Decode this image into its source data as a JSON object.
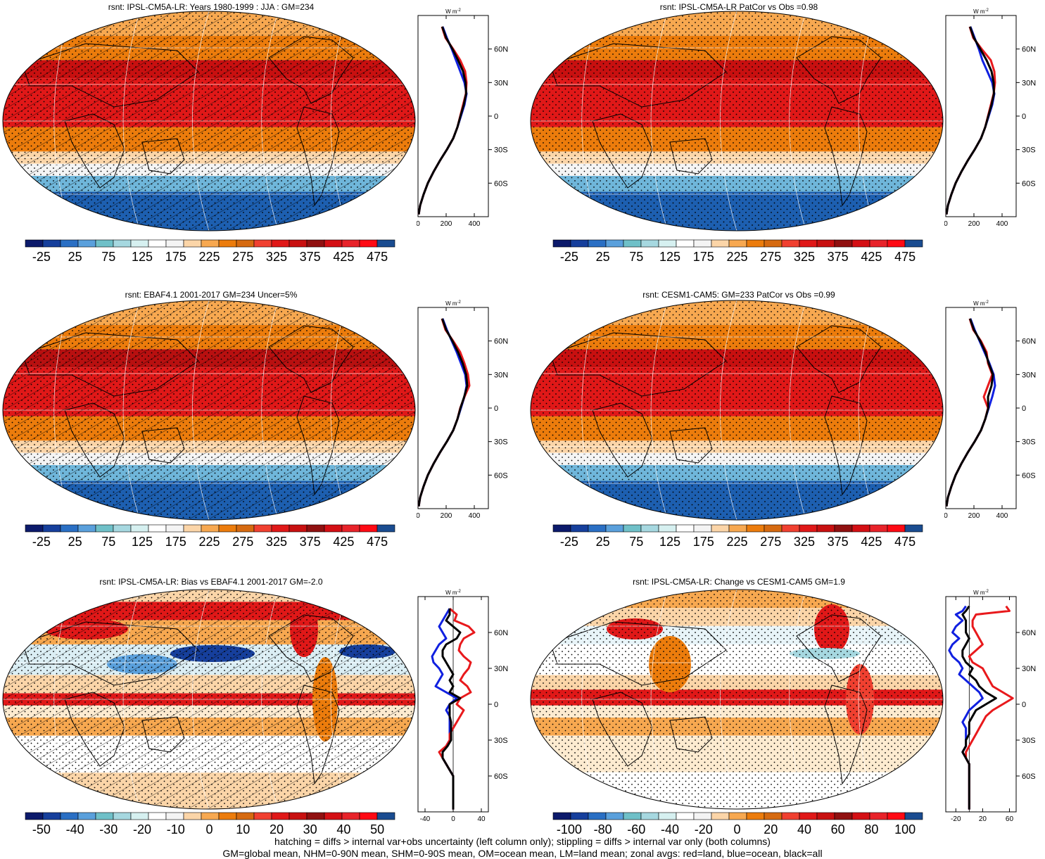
{
  "footer": {
    "line1": "hatching = diffs > internal var+obs uncertainty (left column only); stippling = diffs > internal var only (both columns)",
    "line2": "GM=global mean, NHM=0-90N mean, SHM=0-90S mean, OM=ocean mean, LM=land mean; zonal avgs: red=land, blue=ocean, black=all"
  },
  "colors": {
    "land": "#e8191c",
    "ocean": "#1020e0",
    "all": "#000000"
  },
  "chart_data": [
    {
      "type": "heatmap",
      "title": "rsnt: IPSL-CM5A-LR: Years 1980-1999 : JJA : GM=234",
      "pattern": "hatch+stipple",
      "colorbar_ticks": [
        "-25",
        "25",
        "75",
        "125",
        "175",
        "225",
        "275",
        "325",
        "375",
        "425",
        "475"
      ],
      "colorbar_colors": [
        "#0c1a6b",
        "#163f9c",
        "#2a6fc4",
        "#5aa0dc",
        "#6fc0c8",
        "#a6d8e0",
        "#d6f0f0",
        "#ffffff",
        "#f4f4f4",
        "#fbd5a8",
        "#f7a850",
        "#ec7c0c",
        "#d66a10",
        "#f04030",
        "#e01818",
        "#c81010",
        "#901010",
        "#d40f14",
        "#e8232a",
        "#ff0a14",
        "#1a4c90"
      ],
      "zonal": {
        "axis_unit": "W m",
        "axis_unit_sup": "-2",
        "x_ticks": [
          "0",
          "200",
          "400"
        ],
        "xlim": [
          0,
          500
        ],
        "y_ticks": [
          "60N",
          "30N",
          "0",
          "30S",
          "60S"
        ],
        "ylim": [
          -90,
          90
        ],
        "lat": [
          80,
          70,
          60,
          50,
          40,
          30,
          20,
          10,
          0,
          -10,
          -20,
          -30,
          -40,
          -50,
          -60,
          -70,
          -80,
          -88
        ],
        "land": [
          170,
          195,
          250,
          300,
          335,
          345,
          340,
          320,
          300,
          280,
          250,
          205,
          155,
          110,
          70,
          40,
          15,
          5
        ],
        "ocean": [
          175,
          205,
          240,
          270,
          300,
          330,
          345,
          330,
          305,
          280,
          250,
          205,
          155,
          110,
          70,
          40,
          15,
          5
        ],
        "all": [
          172,
          200,
          245,
          285,
          320,
          338,
          342,
          325,
          302,
          280,
          250,
          205,
          155,
          110,
          70,
          40,
          15,
          5
        ]
      }
    },
    {
      "type": "heatmap",
      "title": "rsnt: IPSL-CM5A-LR PatCor vs Obs =0.98",
      "pattern": "stipple",
      "colorbar_ticks": [
        "-25",
        "25",
        "75",
        "125",
        "175",
        "225",
        "275",
        "325",
        "375",
        "425",
        "475"
      ],
      "colorbar_colors": [
        "#0c1a6b",
        "#163f9c",
        "#2a6fc4",
        "#5aa0dc",
        "#6fc0c8",
        "#a6d8e0",
        "#d6f0f0",
        "#ffffff",
        "#f4f4f4",
        "#fbd5a8",
        "#f7a850",
        "#ec7c0c",
        "#d66a10",
        "#f04030",
        "#e01818",
        "#c81010",
        "#901010",
        "#d40f14",
        "#e8232a",
        "#ff0a14",
        "#1a4c90"
      ],
      "zonal": {
        "axis_unit": "W m",
        "axis_unit_sup": "-2",
        "x_ticks": [
          "0",
          "200",
          "400"
        ],
        "xlim": [
          0,
          500
        ],
        "y_ticks": [
          "60N",
          "30N",
          "0",
          "30S",
          "60S"
        ],
        "ylim": [
          -90,
          90
        ],
        "lat": [
          80,
          70,
          60,
          50,
          40,
          30,
          20,
          10,
          0,
          -10,
          -20,
          -30,
          -40,
          -50,
          -60,
          -70,
          -80,
          -88
        ],
        "land": [
          170,
          195,
          255,
          320,
          345,
          350,
          340,
          320,
          300,
          280,
          250,
          205,
          155,
          110,
          70,
          40,
          15,
          5
        ],
        "ocean": [
          175,
          205,
          235,
          260,
          295,
          330,
          345,
          330,
          305,
          280,
          250,
          205,
          155,
          110,
          70,
          40,
          15,
          5
        ],
        "all": [
          172,
          200,
          245,
          290,
          325,
          340,
          342,
          325,
          302,
          280,
          250,
          205,
          155,
          110,
          70,
          40,
          15,
          5
        ]
      }
    },
    {
      "type": "heatmap",
      "title": "rsnt: EBAF4.1 2001-2017 GM=234 Uncer=5%",
      "pattern": "hatch+stipple",
      "colorbar_ticks": [
        "-25",
        "25",
        "75",
        "125",
        "175",
        "225",
        "275",
        "325",
        "375",
        "425",
        "475"
      ],
      "colorbar_colors": [
        "#0c1a6b",
        "#163f9c",
        "#2a6fc4",
        "#5aa0dc",
        "#6fc0c8",
        "#a6d8e0",
        "#d6f0f0",
        "#ffffff",
        "#f4f4f4",
        "#fbd5a8",
        "#f7a850",
        "#ec7c0c",
        "#d66a10",
        "#f04030",
        "#e01818",
        "#c81010",
        "#901010",
        "#d40f14",
        "#e8232a",
        "#ff0a14",
        "#1a4c90"
      ],
      "zonal": {
        "axis_unit": "W m",
        "axis_unit_sup": "-2",
        "x_ticks": [
          "0",
          "200",
          "400"
        ],
        "xlim": [
          0,
          500
        ],
        "y_ticks": [
          "60N",
          "30N",
          "0",
          "30S",
          "60S"
        ],
        "ylim": [
          -90,
          90
        ],
        "lat": [
          80,
          70,
          60,
          50,
          40,
          30,
          20,
          10,
          0,
          -10,
          -20,
          -30,
          -40,
          -50,
          -60,
          -70,
          -80,
          -88
        ],
        "land": [
          170,
          195,
          250,
          300,
          330,
          355,
          365,
          330,
          300,
          280,
          250,
          205,
          155,
          110,
          70,
          40,
          15,
          5
        ],
        "ocean": [
          175,
          205,
          240,
          275,
          305,
          335,
          345,
          330,
          305,
          280,
          250,
          205,
          155,
          110,
          70,
          40,
          15,
          5
        ],
        "all": [
          172,
          200,
          245,
          285,
          318,
          342,
          350,
          328,
          302,
          280,
          250,
          205,
          155,
          110,
          70,
          40,
          15,
          5
        ]
      }
    },
    {
      "type": "heatmap",
      "title": "rsnt: CESM1-CAM5: GM=233 PatCor vs Obs =0.99",
      "pattern": "stipple",
      "colorbar_ticks": [
        "-25",
        "25",
        "75",
        "125",
        "175",
        "225",
        "275",
        "325",
        "375",
        "425",
        "475"
      ],
      "colorbar_colors": [
        "#0c1a6b",
        "#163f9c",
        "#2a6fc4",
        "#5aa0dc",
        "#6fc0c8",
        "#a6d8e0",
        "#d6f0f0",
        "#ffffff",
        "#f4f4f4",
        "#fbd5a8",
        "#f7a850",
        "#ec7c0c",
        "#d66a10",
        "#f04030",
        "#e01818",
        "#c81010",
        "#901010",
        "#d40f14",
        "#e8232a",
        "#ff0a14",
        "#1a4c90"
      ],
      "zonal": {
        "axis_unit": "W m",
        "axis_unit_sup": "-2",
        "x_ticks": [
          "0",
          "200",
          "400"
        ],
        "xlim": [
          0,
          500
        ],
        "y_ticks": [
          "60N",
          "30N",
          "0",
          "30S",
          "60S"
        ],
        "ylim": [
          -90,
          90
        ],
        "lat": [
          80,
          70,
          60,
          50,
          40,
          30,
          20,
          10,
          0,
          -10,
          -20,
          -30,
          -40,
          -50,
          -60,
          -70,
          -80,
          -88
        ],
        "land": [
          170,
          195,
          250,
          290,
          300,
          330,
          300,
          270,
          300,
          280,
          250,
          205,
          155,
          110,
          70,
          40,
          15,
          5
        ],
        "ocean": [
          175,
          205,
          240,
          275,
          310,
          340,
          350,
          330,
          305,
          280,
          250,
          205,
          155,
          110,
          70,
          40,
          15,
          5
        ],
        "all": [
          172,
          200,
          245,
          282,
          305,
          335,
          325,
          300,
          302,
          280,
          250,
          205,
          155,
          110,
          70,
          40,
          15,
          5
        ]
      }
    },
    {
      "type": "heatmap",
      "title": "rsnt: IPSL-CM5A-LR: Bias vs EBAF4.1 2001-2017 GM=-2.0",
      "pattern": "hatch+stipple",
      "colorbar_ticks": [
        "-50",
        "-40",
        "-30",
        "-20",
        "-10",
        "0",
        "10",
        "20",
        "30",
        "40",
        "50"
      ],
      "colorbar_colors": [
        "#0c1a6b",
        "#163f9c",
        "#2a6fc4",
        "#5aa0dc",
        "#6fc0c8",
        "#a6d8e0",
        "#d6f0f0",
        "#ffffff",
        "#f4f4f4",
        "#fbd5a8",
        "#f7a850",
        "#ec7c0c",
        "#d66a10",
        "#f04030",
        "#e01818",
        "#c81010",
        "#901010",
        "#d40f14",
        "#e8232a",
        "#ff0a14",
        "#1a4c90"
      ],
      "zonal": {
        "axis_unit": "W m",
        "axis_unit_sup": "-2",
        "x_ticks": [
          "-40",
          "0",
          "40"
        ],
        "xlim": [
          -50,
          50
        ],
        "y_ticks": [
          "60N",
          "30N",
          "0",
          "30S",
          "60S"
        ],
        "ylim": [
          -90,
          90
        ],
        "lat": [
          80,
          75,
          70,
          65,
          60,
          55,
          50,
          45,
          40,
          35,
          30,
          25,
          20,
          15,
          10,
          5,
          0,
          -5,
          -10,
          -15,
          -20,
          -25,
          -30,
          -35,
          -40,
          -45,
          -50,
          -55,
          -60,
          -70,
          -80,
          -88
        ],
        "land": [
          -5,
          5,
          2,
          22,
          30,
          15,
          10,
          8,
          15,
          25,
          22,
          15,
          10,
          20,
          25,
          10,
          5,
          15,
          10,
          5,
          0,
          -5,
          -5,
          -10,
          -20,
          -15,
          -10,
          -5,
          0,
          0,
          0,
          0
        ],
        "ocean": [
          -5,
          -10,
          -15,
          -20,
          -15,
          -10,
          -20,
          -25,
          -30,
          -28,
          -20,
          -15,
          -20,
          -25,
          -10,
          5,
          -5,
          -10,
          -5,
          -5,
          -5,
          -5,
          -5,
          -10,
          -15,
          -15,
          -10,
          -5,
          0,
          0,
          0,
          0
        ],
        "all": [
          -5,
          -5,
          -10,
          0,
          10,
          5,
          -10,
          -15,
          -15,
          -10,
          -5,
          0,
          -5,
          0,
          -5,
          10,
          -5,
          -5,
          -5,
          -3,
          -3,
          -3,
          -3,
          -8,
          -15,
          -15,
          -10,
          -5,
          0,
          0,
          0,
          0
        ]
      }
    },
    {
      "type": "heatmap",
      "title": "rsnt: IPSL-CM5A-LR: Change vs CESM1-CAM5 GM=1.9",
      "pattern": "stipple",
      "colorbar_ticks": [
        "-100",
        "-80",
        "-60",
        "-40",
        "-20",
        "0",
        "20",
        "40",
        "60",
        "80",
        "100"
      ],
      "colorbar_colors": [
        "#0c1a6b",
        "#163f9c",
        "#2a6fc4",
        "#5aa0dc",
        "#6fc0c8",
        "#a6d8e0",
        "#d6f0f0",
        "#ffffff",
        "#f4f4f4",
        "#fbd5a8",
        "#f7a850",
        "#ec7c0c",
        "#d66a10",
        "#f04030",
        "#e01818",
        "#c81010",
        "#901010",
        "#d40f14",
        "#e8232a",
        "#ff0a14",
        "#1a4c90"
      ],
      "zonal": {
        "axis_unit": "W m",
        "axis_unit_sup": "-2",
        "x_ticks": [
          "-20",
          "20",
          "60"
        ],
        "xlim": [
          -35,
          70
        ],
        "y_ticks": [
          "60N",
          "30N",
          "0",
          "30S",
          "60S"
        ],
        "ylim": [
          -90,
          90
        ],
        "lat": [
          82,
          78,
          75,
          70,
          65,
          60,
          55,
          50,
          45,
          40,
          35,
          30,
          25,
          20,
          15,
          10,
          5,
          0,
          -5,
          -10,
          -15,
          -20,
          -25,
          -30,
          -35,
          -40,
          -45,
          -50,
          -55,
          -60,
          -70,
          -80,
          -88
        ],
        "land": [
          55,
          60,
          10,
          5,
          5,
          10,
          15,
          20,
          10,
          0,
          5,
          20,
          25,
          30,
          35,
          50,
          65,
          50,
          35,
          25,
          20,
          15,
          10,
          5,
          0,
          -5,
          -5,
          0,
          0,
          0,
          0,
          0,
          0
        ],
        "ocean": [
          -5,
          -10,
          -20,
          -10,
          -20,
          -25,
          -15,
          -25,
          -30,
          -25,
          -15,
          -10,
          -15,
          -5,
          5,
          15,
          20,
          10,
          0,
          -5,
          -10,
          -5,
          -5,
          -5,
          -5,
          -10,
          -5,
          0,
          0,
          0,
          0,
          0,
          0
        ],
        "all": [
          0,
          -5,
          -10,
          -5,
          -5,
          -5,
          0,
          -5,
          -10,
          -10,
          -5,
          5,
          0,
          10,
          15,
          25,
          40,
          25,
          10,
          5,
          0,
          0,
          0,
          -5,
          -5,
          -10,
          -5,
          0,
          0,
          0,
          0,
          0,
          0
        ]
      }
    }
  ]
}
